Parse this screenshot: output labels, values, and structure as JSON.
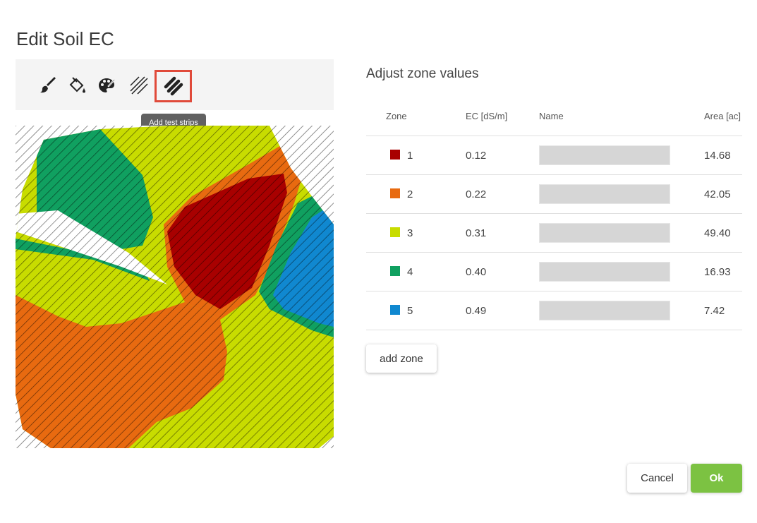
{
  "dialog": {
    "title": "Edit Soil EC"
  },
  "toolbar": {
    "tools": [
      {
        "name": "brush-icon"
      },
      {
        "name": "paint-bucket-icon"
      },
      {
        "name": "palette-icon"
      },
      {
        "name": "hatch-lines-icon"
      },
      {
        "name": "test-strips-icon",
        "active": true
      }
    ],
    "tooltip": "Add test strips"
  },
  "panel": {
    "title": "Adjust zone values"
  },
  "table": {
    "headers": {
      "zone": "Zone",
      "ec": "EC [dS/m]",
      "name": "Name",
      "area": "Area [ac]"
    },
    "rows": [
      {
        "zone": "1",
        "ec": "0.12",
        "name": "",
        "area": "14.68",
        "color": "#a80000"
      },
      {
        "zone": "2",
        "ec": "0.22",
        "name": "",
        "area": "42.05",
        "color": "#e86a10"
      },
      {
        "zone": "3",
        "ec": "0.31",
        "name": "",
        "area": "49.40",
        "color": "#c8dc00"
      },
      {
        "zone": "4",
        "ec": "0.40",
        "name": "",
        "area": "16.93",
        "color": "#10a060"
      },
      {
        "zone": "5",
        "ec": "0.49",
        "name": "",
        "area": "7.42",
        "color": "#1088d0"
      }
    ]
  },
  "buttons": {
    "add_zone": "add zone",
    "cancel": "Cancel",
    "ok": "Ok"
  }
}
